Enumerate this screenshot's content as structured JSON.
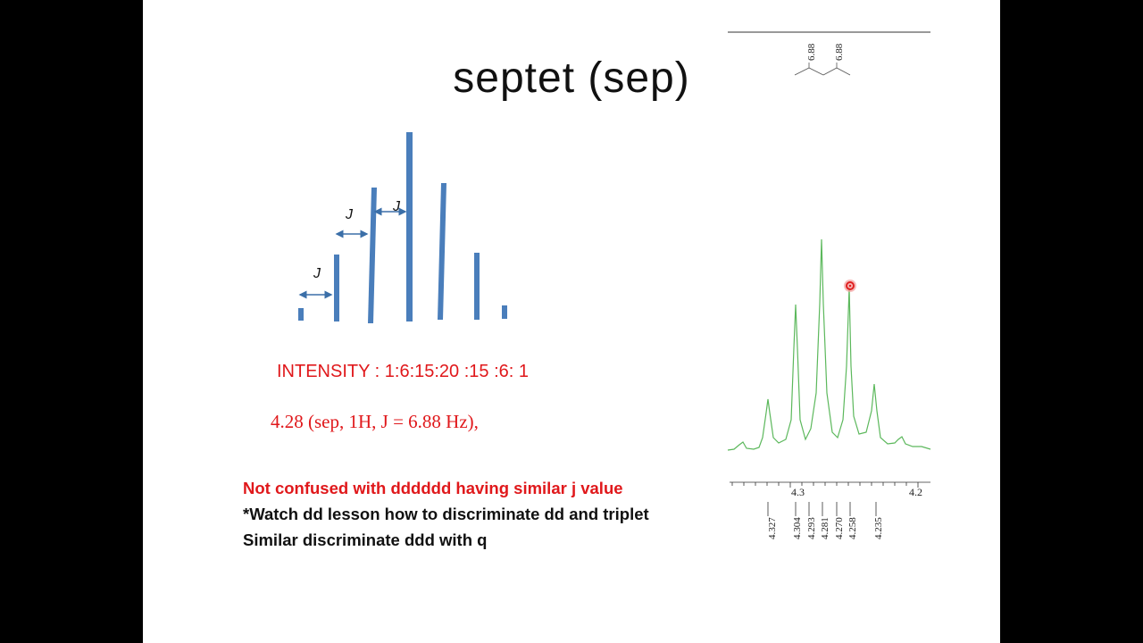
{
  "slide": {
    "title": "septet  (sep)",
    "intensity_text": "INTENSITY :  1:6:15:20 :15 :6: 1",
    "shift_text": "4.28 (sep, 1H, J = 6.88 Hz),",
    "notes": [
      "Not confused with dddddd having similar  j value",
      "*Watch dd lesson how to discriminate dd and triplet",
      "Similar discriminate ddd with q"
    ],
    "colors": {
      "background": "#000000",
      "slide": "#ffffff",
      "bars": "#4a7ebb",
      "arrows": "#3b6fa8",
      "red_text": "#e0181b",
      "spectrum": "#5cb85c",
      "cursor": "#e02020"
    }
  },
  "diagram": {
    "j_label": "J",
    "relative_intensities": [
      1,
      6,
      15,
      20,
      15,
      6,
      1
    ]
  },
  "spectrum": {
    "axis_labels": [
      "4.3",
      "4.2"
    ],
    "peak_labels": [
      "4.327",
      "4.304",
      "4.293",
      "4.281",
      "4.270",
      "4.258",
      "4.235"
    ],
    "coupling_labels": [
      "6.88",
      "6.88"
    ]
  }
}
